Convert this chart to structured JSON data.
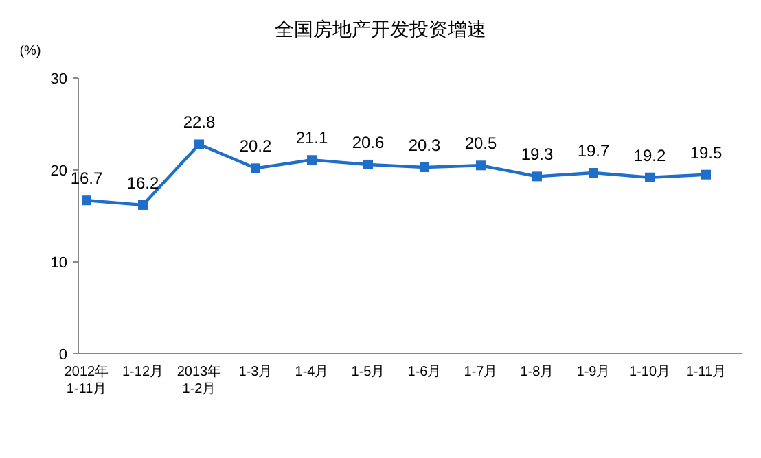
{
  "chart_data": {
    "type": "line",
    "title": "全国房地产开发投资增速",
    "ylabel": "(%)",
    "categories": [
      "2012年\n1-11月",
      "1-12月",
      "2013年\n1-2月",
      "1-3月",
      "1-4月",
      "1-5月",
      "1-6月",
      "1-7月",
      "1-8月",
      "1-9月",
      "1-10月",
      "1-11月"
    ],
    "series": [
      {
        "color": "#1f6ec9",
        "values": [
          16.7,
          16.2,
          22.8,
          20.2,
          21.1,
          20.6,
          20.3,
          20.5,
          19.3,
          19.7,
          19.2,
          19.5
        ]
      }
    ],
    "ylim": [
      0,
      30
    ],
    "yticks": [
      0,
      10,
      20,
      30
    ],
    "data_labels": true,
    "marker": "square",
    "line_style": "solid"
  }
}
